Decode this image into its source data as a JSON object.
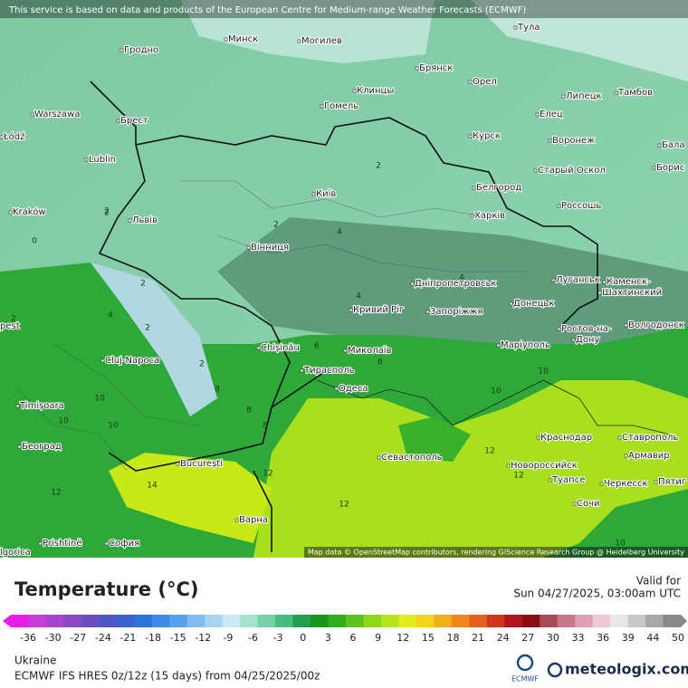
{
  "header": {
    "disclaimer": "This service is based on data and products of the European Centre for Medium-range Weather Forecasts (ECMWF)"
  },
  "map": {
    "attribution": "Map data © OpenStreetMap contributors, rendering GIScience Research Group @ Heidelberg University",
    "cities": [
      "Минск",
      "Могилев",
      "Тула",
      "Гродно",
      "Брянск",
      "Орел",
      "Клинцы",
      "Гомель",
      "Липецк",
      "Тамбов",
      "Warszawa",
      "Брест",
      "Елец",
      "Łódź",
      "Курск",
      "Воронеж",
      "Бала",
      "Lublin",
      "Старый Оскол",
      "Борис",
      "Белгород",
      "Київ",
      "Kraków",
      "Львів",
      "Харків",
      "Россошь",
      "Вінниця",
      "Луганськ",
      "Каменск-",
      "Шахтинский",
      "Дніпропетровськ",
      "Донецьк",
      "Кривий Ріг",
      "Запоріжжя",
      "pest",
      "Ростов-на-",
      "Дону",
      "Волгодонск",
      "Chișinău",
      "Миколаїв",
      "Маріуполь",
      "Cluj-Napoca",
      "Тирасполь",
      "Одеса",
      "Timișoara",
      "Краснодар",
      "Ставрополь",
      "Београд",
      "Севастополь",
      "Армавир",
      "București",
      "Новороссийск",
      "Туапсе",
      "Черкесск",
      "Пятиг",
      "Сочи",
      "Варна",
      "Prishtinë",
      "София",
      "lgorica"
    ],
    "contours": [
      "2",
      "2",
      "2",
      "0",
      "2",
      "2",
      "2",
      "4",
      "4",
      "4",
      "2",
      "4",
      "2",
      "6",
      "8",
      "8",
      "10",
      "10",
      "10",
      "10",
      "12",
      "12",
      "12",
      "12",
      "12",
      "14",
      "6",
      "8",
      "10",
      "10"
    ]
  },
  "legend": {
    "title": "Temperature (°C)",
    "ticks": [
      -36,
      -30,
      -27,
      -24,
      -21,
      -18,
      -15,
      -12,
      -9,
      -6,
      -3,
      0,
      3,
      6,
      9,
      12,
      15,
      18,
      21,
      24,
      27,
      30,
      33,
      36,
      39,
      44,
      50
    ],
    "colors": [
      "#e81ee8",
      "#c83cd8",
      "#a844d0",
      "#8848c8",
      "#6a4cc4",
      "#5054c8",
      "#3a62d0",
      "#2c74dc",
      "#3a8ae6",
      "#56a2ee",
      "#80bcf2",
      "#a8d4f4",
      "#cce8f4",
      "#a4e4cc",
      "#74d0a8",
      "#48bc80",
      "#22a050",
      "#16961c",
      "#30ac1c",
      "#5cc41c",
      "#8cd81c",
      "#b8e41c",
      "#e0ec1c",
      "#f4d41c",
      "#f4b01c",
      "#f0861c",
      "#e4601c",
      "#d0361c",
      "#b0141c",
      "#8c0c14",
      "#a84858",
      "#c87888",
      "#e0a0b0",
      "#f0c8d0",
      "#e8e8e8",
      "#c8c8c8",
      "#a8a8a8",
      "#888888"
    ]
  },
  "valid": {
    "label": "Valid for",
    "time": "Sun 04/27/2025, 03:00am UTC"
  },
  "footer": {
    "region": "Ukraine",
    "model": "ECMWF IFS HRES 0z/12z (15 days) from  04/25/2025/00z",
    "ecmwf": "ECMWF",
    "brand": "meteologix.com"
  }
}
